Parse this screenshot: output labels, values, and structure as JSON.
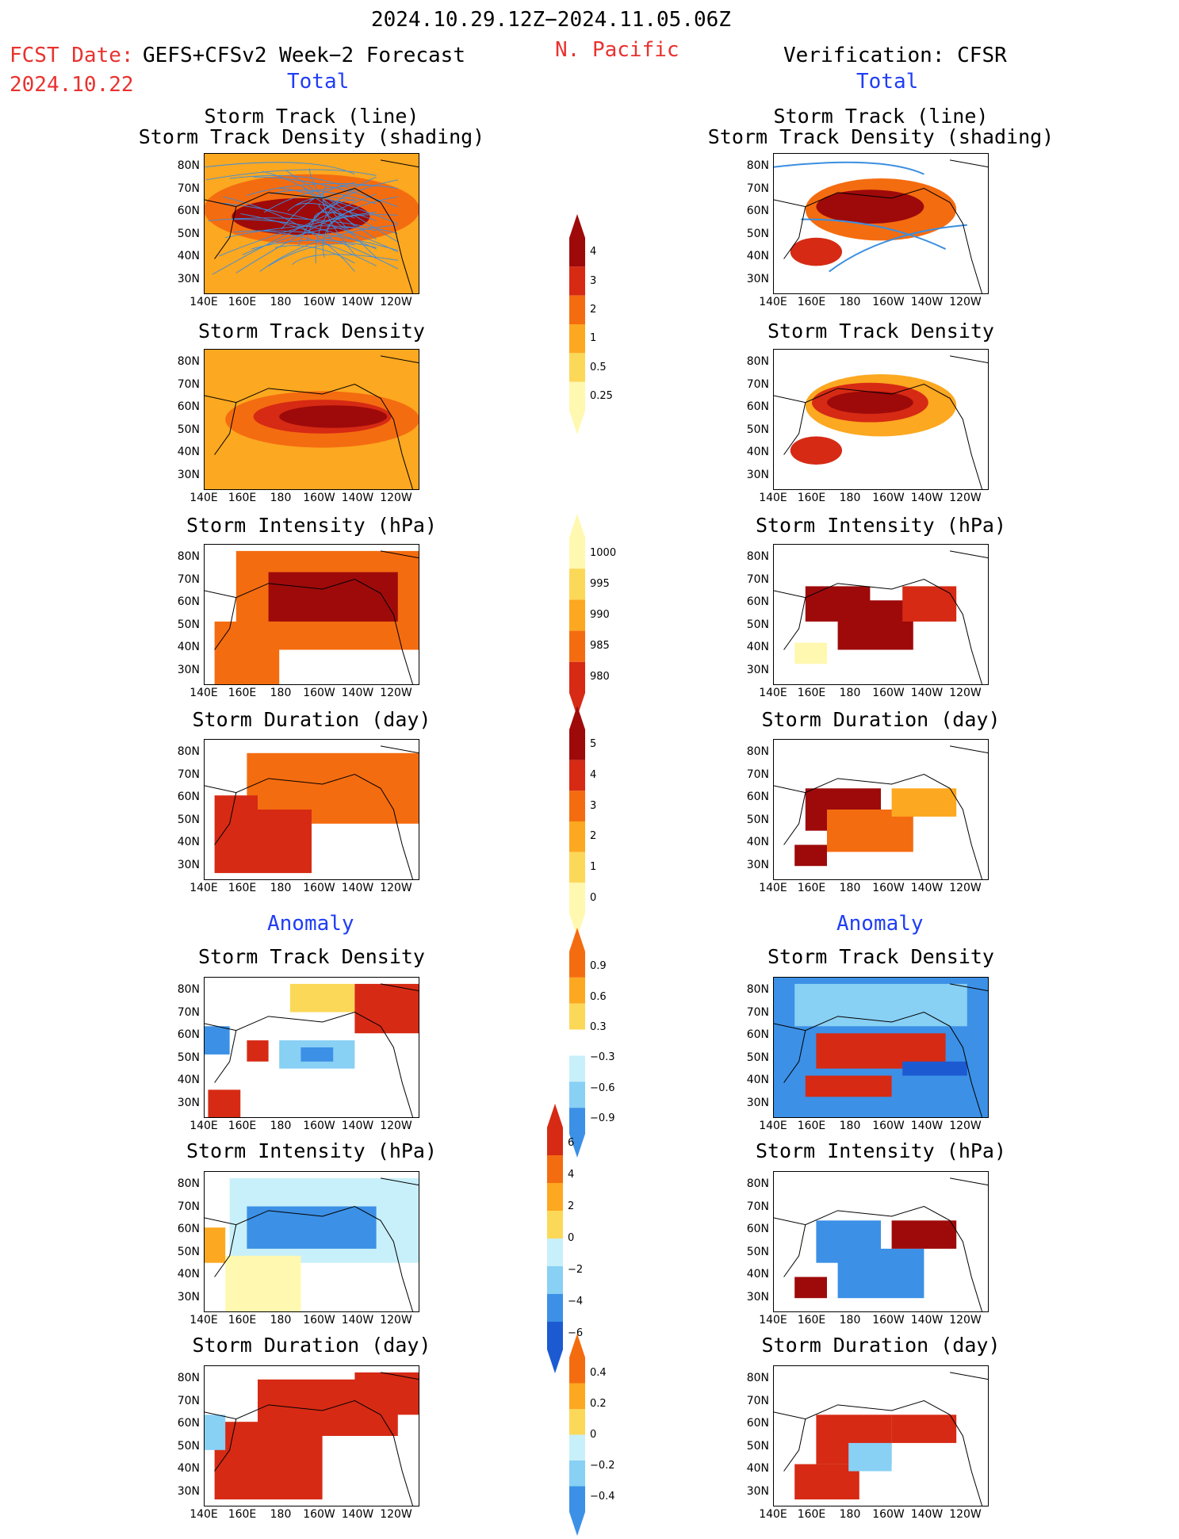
{
  "header": {
    "period": "2024.10.29.12Z−2024.11.05.06Z",
    "fcst_label": "FCST Date:",
    "fcst_model": "GEFS+CFSv2 Week−2 Forecast",
    "fcst_date": "2024.10.22",
    "region": "N. Pacific",
    "verification": "Verification: CFSR"
  },
  "sections": {
    "total": "Total",
    "anomaly": "Anomaly"
  },
  "panel_titles": {
    "track_line": "Storm Track (line)",
    "track_shading": "Storm Track Density (shading)",
    "density": "Storm Track Density",
    "intensity": "Storm Intensity (hPa)",
    "duration": "Storm Duration (day)"
  },
  "axes": {
    "lat": [
      "80N",
      "70N",
      "60N",
      "50N",
      "40N",
      "30N"
    ],
    "lon": [
      "140E",
      "160E",
      "180",
      "160W",
      "140W",
      "120W"
    ]
  },
  "colorbars": {
    "density_total": [
      "4",
      "3",
      "2",
      "1",
      "0.5",
      "0.25"
    ],
    "intensity_total": [
      "1000",
      "995",
      "990",
      "985",
      "980"
    ],
    "duration_total": [
      "5",
      "4",
      "3",
      "2",
      "1",
      "0"
    ],
    "density_anom": [
      "0.9",
      "0.6",
      "0.3",
      "−0.3",
      "−0.6",
      "−0.9"
    ],
    "intensity_anom": [
      "6",
      "4",
      "2",
      "0",
      "−2",
      "−4",
      "−6"
    ],
    "duration_anom": [
      "0.4",
      "0.2",
      "0",
      "−0.2",
      "−0.4"
    ]
  },
  "colors": {
    "warm": [
      "#fff8b0",
      "#fcd858",
      "#fca820",
      "#f46c10",
      "#d62a14",
      "#9e0a0a"
    ],
    "cool": [
      "#c8f0fa",
      "#88d0f4",
      "#3c90e6",
      "#1c5ad2"
    ],
    "track_line": "#3a8ee0"
  }
}
